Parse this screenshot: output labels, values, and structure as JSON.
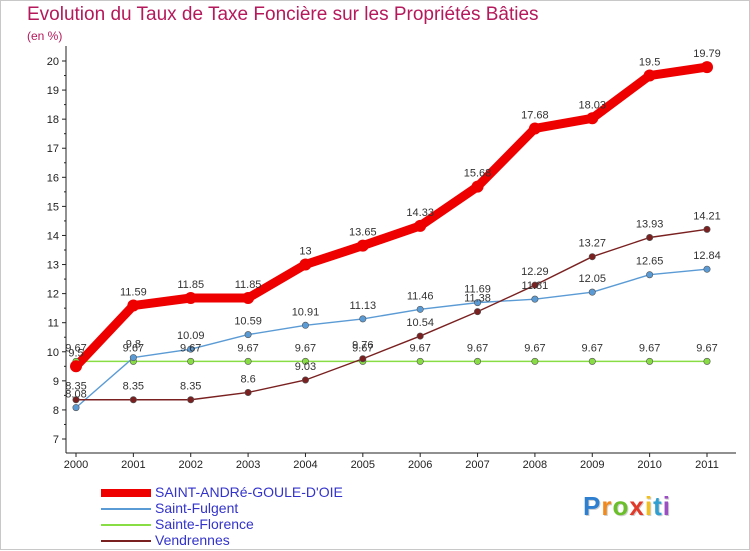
{
  "chart_data": {
    "type": "line",
    "title": "Evolution du Taux de Taxe Foncière sur les Propriétés Bâties",
    "unit_label": "(en %)",
    "x": [
      "2000",
      "2001",
      "2002",
      "2003",
      "2004",
      "2005",
      "2006",
      "2007",
      "2008",
      "2009",
      "2010",
      "2011"
    ],
    "y_ticks": [
      "7",
      "8",
      "9",
      "10",
      "11",
      "12",
      "13",
      "14",
      "15",
      "16",
      "17",
      "18",
      "19",
      "20"
    ],
    "ylim": [
      7,
      20
    ],
    "grid": false,
    "legend_position": "bottom-left",
    "series": [
      {
        "name": "SAINT-ANDRé-GOULE-D'OIE",
        "color": "#ee0000",
        "values": [
          9.5,
          11.59,
          11.85,
          11.85,
          13,
          13.65,
          14.33,
          15.68,
          17.68,
          18.03,
          19.5,
          19.79
        ],
        "labels": [
          "9.5",
          "11.59",
          "11.85",
          "11.85",
          "13",
          "13.65",
          "14.33",
          "15.68",
          "17.68",
          "18.03",
          "19.5",
          "19.79"
        ]
      },
      {
        "name": "Saint-Fulgent",
        "color": "#5b9bd5",
        "values": [
          8.08,
          9.8,
          10.09,
          10.59,
          10.91,
          11.13,
          11.46,
          11.69,
          11.81,
          12.05,
          12.65,
          12.84
        ],
        "labels": [
          "8.08",
          "9.8",
          "10.09",
          "10.59",
          "10.91",
          "11.13",
          "11.46",
          "11.69",
          "11.81",
          "12.05",
          "12.65",
          "12.84"
        ]
      },
      {
        "name": "Sainte-Florence",
        "color": "#88dd44",
        "values": [
          9.67,
          9.67,
          9.67,
          9.67,
          9.67,
          9.67,
          9.67,
          9.67,
          9.67,
          9.67,
          9.67,
          9.67
        ],
        "labels": [
          "9.67",
          "9.67",
          "9.67",
          "9.67",
          "9.67",
          "9.67",
          "9.67",
          "9.67",
          "9.67",
          "9.67",
          "9.67",
          "9.67"
        ]
      },
      {
        "name": "Vendrennes",
        "color": "#7a2020",
        "values": [
          8.35,
          8.35,
          8.35,
          8.6,
          9.03,
          9.76,
          10.54,
          11.38,
          12.29,
          13.27,
          13.93,
          14.21
        ],
        "labels": [
          "8.35",
          "8.35",
          "8.35",
          "8.6",
          "9.03",
          "9.76",
          "10.54",
          "11.38",
          "12.29",
          "13.27",
          "13.93",
          "14.21"
        ]
      }
    ]
  },
  "brand": {
    "letters": [
      "P",
      "r",
      "o",
      "x",
      "i",
      "t",
      "i"
    ],
    "colors": [
      "#2f7fd0",
      "#f08a1c",
      "#6bbf2a",
      "#e23a2a",
      "#f0c020",
      "#2f9fd0",
      "#9b4fc2"
    ]
  }
}
